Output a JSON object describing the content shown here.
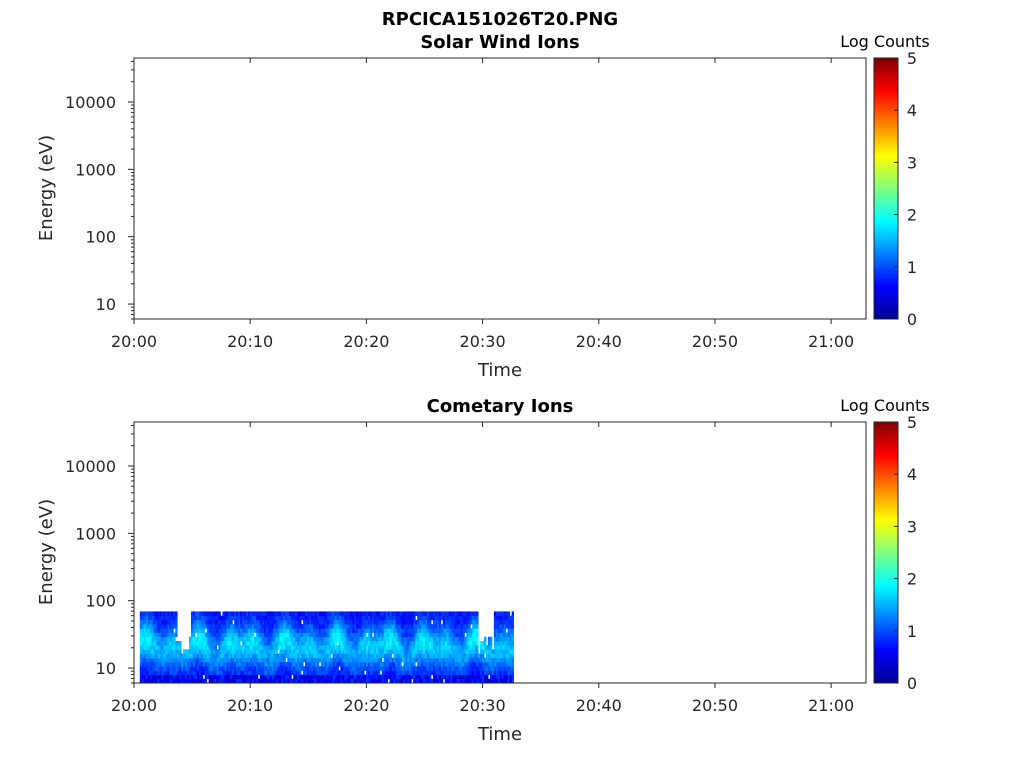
{
  "figure": {
    "title": "RPCICA151026T20.PNG"
  },
  "colors": {
    "colormap": "jet",
    "axes": "#262626",
    "background": "#ffffff"
  },
  "chart_data": [
    {
      "type": "heatmap",
      "title": "Solar Wind Ions",
      "xlabel": "Time",
      "ylabel": "Energy (eV)",
      "xlim": [
        "20:00",
        "21:03"
      ],
      "ylim": [
        6,
        45000
      ],
      "yscale": "log",
      "x_ticks": [
        "20:00",
        "20:10",
        "20:20",
        "20:30",
        "20:40",
        "20:50",
        "21:00"
      ],
      "y_ticks": [
        "10",
        "100",
        "1000",
        "10000"
      ],
      "colorbar": {
        "label": "Log Counts",
        "range": [
          0,
          5
        ],
        "ticks": [
          "0",
          "1",
          "2",
          "3",
          "4",
          "5"
        ]
      },
      "data_coverage": null
    },
    {
      "type": "heatmap",
      "title": "Cometary Ions",
      "xlabel": "Time",
      "ylabel": "Energy (eV)",
      "xlim": [
        "20:00",
        "21:03"
      ],
      "ylim": [
        6,
        45000
      ],
      "yscale": "log",
      "x_ticks": [
        "20:00",
        "20:10",
        "20:20",
        "20:30",
        "20:40",
        "20:50",
        "21:00"
      ],
      "y_ticks": [
        "10",
        "100",
        "1000",
        "10000"
      ],
      "colorbar": {
        "label": "Log Counts",
        "range": [
          0,
          5
        ],
        "ticks": [
          "0",
          "1",
          "2",
          "3",
          "4",
          "5"
        ]
      },
      "data_coverage": {
        "time_start": "20:00:30",
        "time_end": "20:32:40",
        "energy_min": 6,
        "energy_max": 80
      },
      "typical_log_counts": [
        0.3,
        1.9
      ],
      "peak_log_counts": 1.9
    }
  ]
}
